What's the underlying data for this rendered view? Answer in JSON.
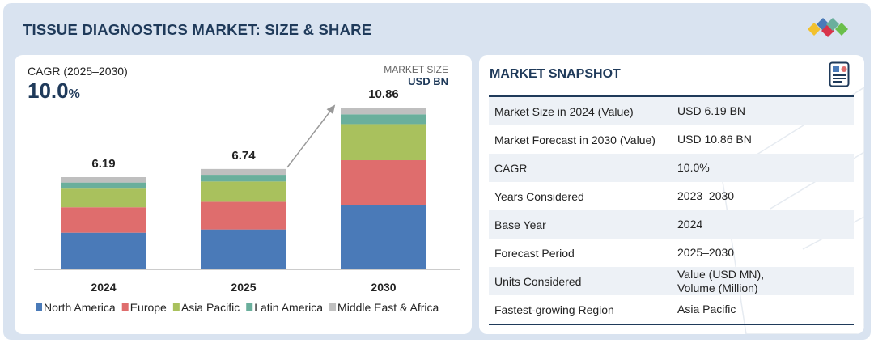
{
  "title": "TISSUE DIAGNOSTICS MARKET: SIZE & SHARE",
  "cagr": {
    "label": "CAGR (2025–2030)",
    "value": "10.0",
    "unit": "%"
  },
  "market_size": {
    "label": "MARKET SIZE",
    "unit": "USD BN"
  },
  "chart_data": {
    "type": "bar",
    "stacked": true,
    "categories": [
      "2024",
      "2025",
      "2030"
    ],
    "totals": [
      6.19,
      6.74,
      10.86
    ],
    "total_labels": [
      "6.19",
      "6.74",
      "10.86"
    ],
    "series": [
      {
        "name": "North America",
        "color": "#4a7ab8",
        "values": [
          2.46,
          2.68,
          4.31
        ]
      },
      {
        "name": "Europe",
        "color": "#df6d6d",
        "values": [
          1.71,
          1.86,
          3.02
        ]
      },
      {
        "name": "Asia Pacific",
        "color": "#a9c15d",
        "values": [
          1.25,
          1.36,
          2.42
        ]
      },
      {
        "name": "Latin America",
        "color": "#6aaf9c",
        "values": [
          0.41,
          0.45,
          0.66
        ]
      },
      {
        "name": "Middle East & Africa",
        "color": "#bfbfbf",
        "values": [
          0.36,
          0.39,
          0.45
        ]
      }
    ],
    "ylim": [
      0,
      10.86
    ],
    "annotation": "growth arrow from 2025 to 2030",
    "legend_position": "bottom",
    "grid": false
  },
  "snapshot": {
    "title": "MARKET SNAPSHOT",
    "icon": "report-icon",
    "rows": [
      {
        "label": "Market Size in 2024 (Value)",
        "value": "USD 6.19 BN"
      },
      {
        "label": "Market Forecast in 2030 (Value)",
        "value": "USD 10.86 BN"
      },
      {
        "label": "CAGR",
        "value": "10.0%"
      },
      {
        "label": "Years Considered",
        "value": "2023–2030"
      },
      {
        "label": "Base Year",
        "value": "2024"
      },
      {
        "label": "Forecast Period",
        "value": "2025–2030"
      },
      {
        "label": "Units Considered",
        "value": "Value (USD MN),\nVolume (Million)"
      },
      {
        "label": "Fastest-growing Region",
        "value": "Asia Pacific"
      }
    ]
  }
}
